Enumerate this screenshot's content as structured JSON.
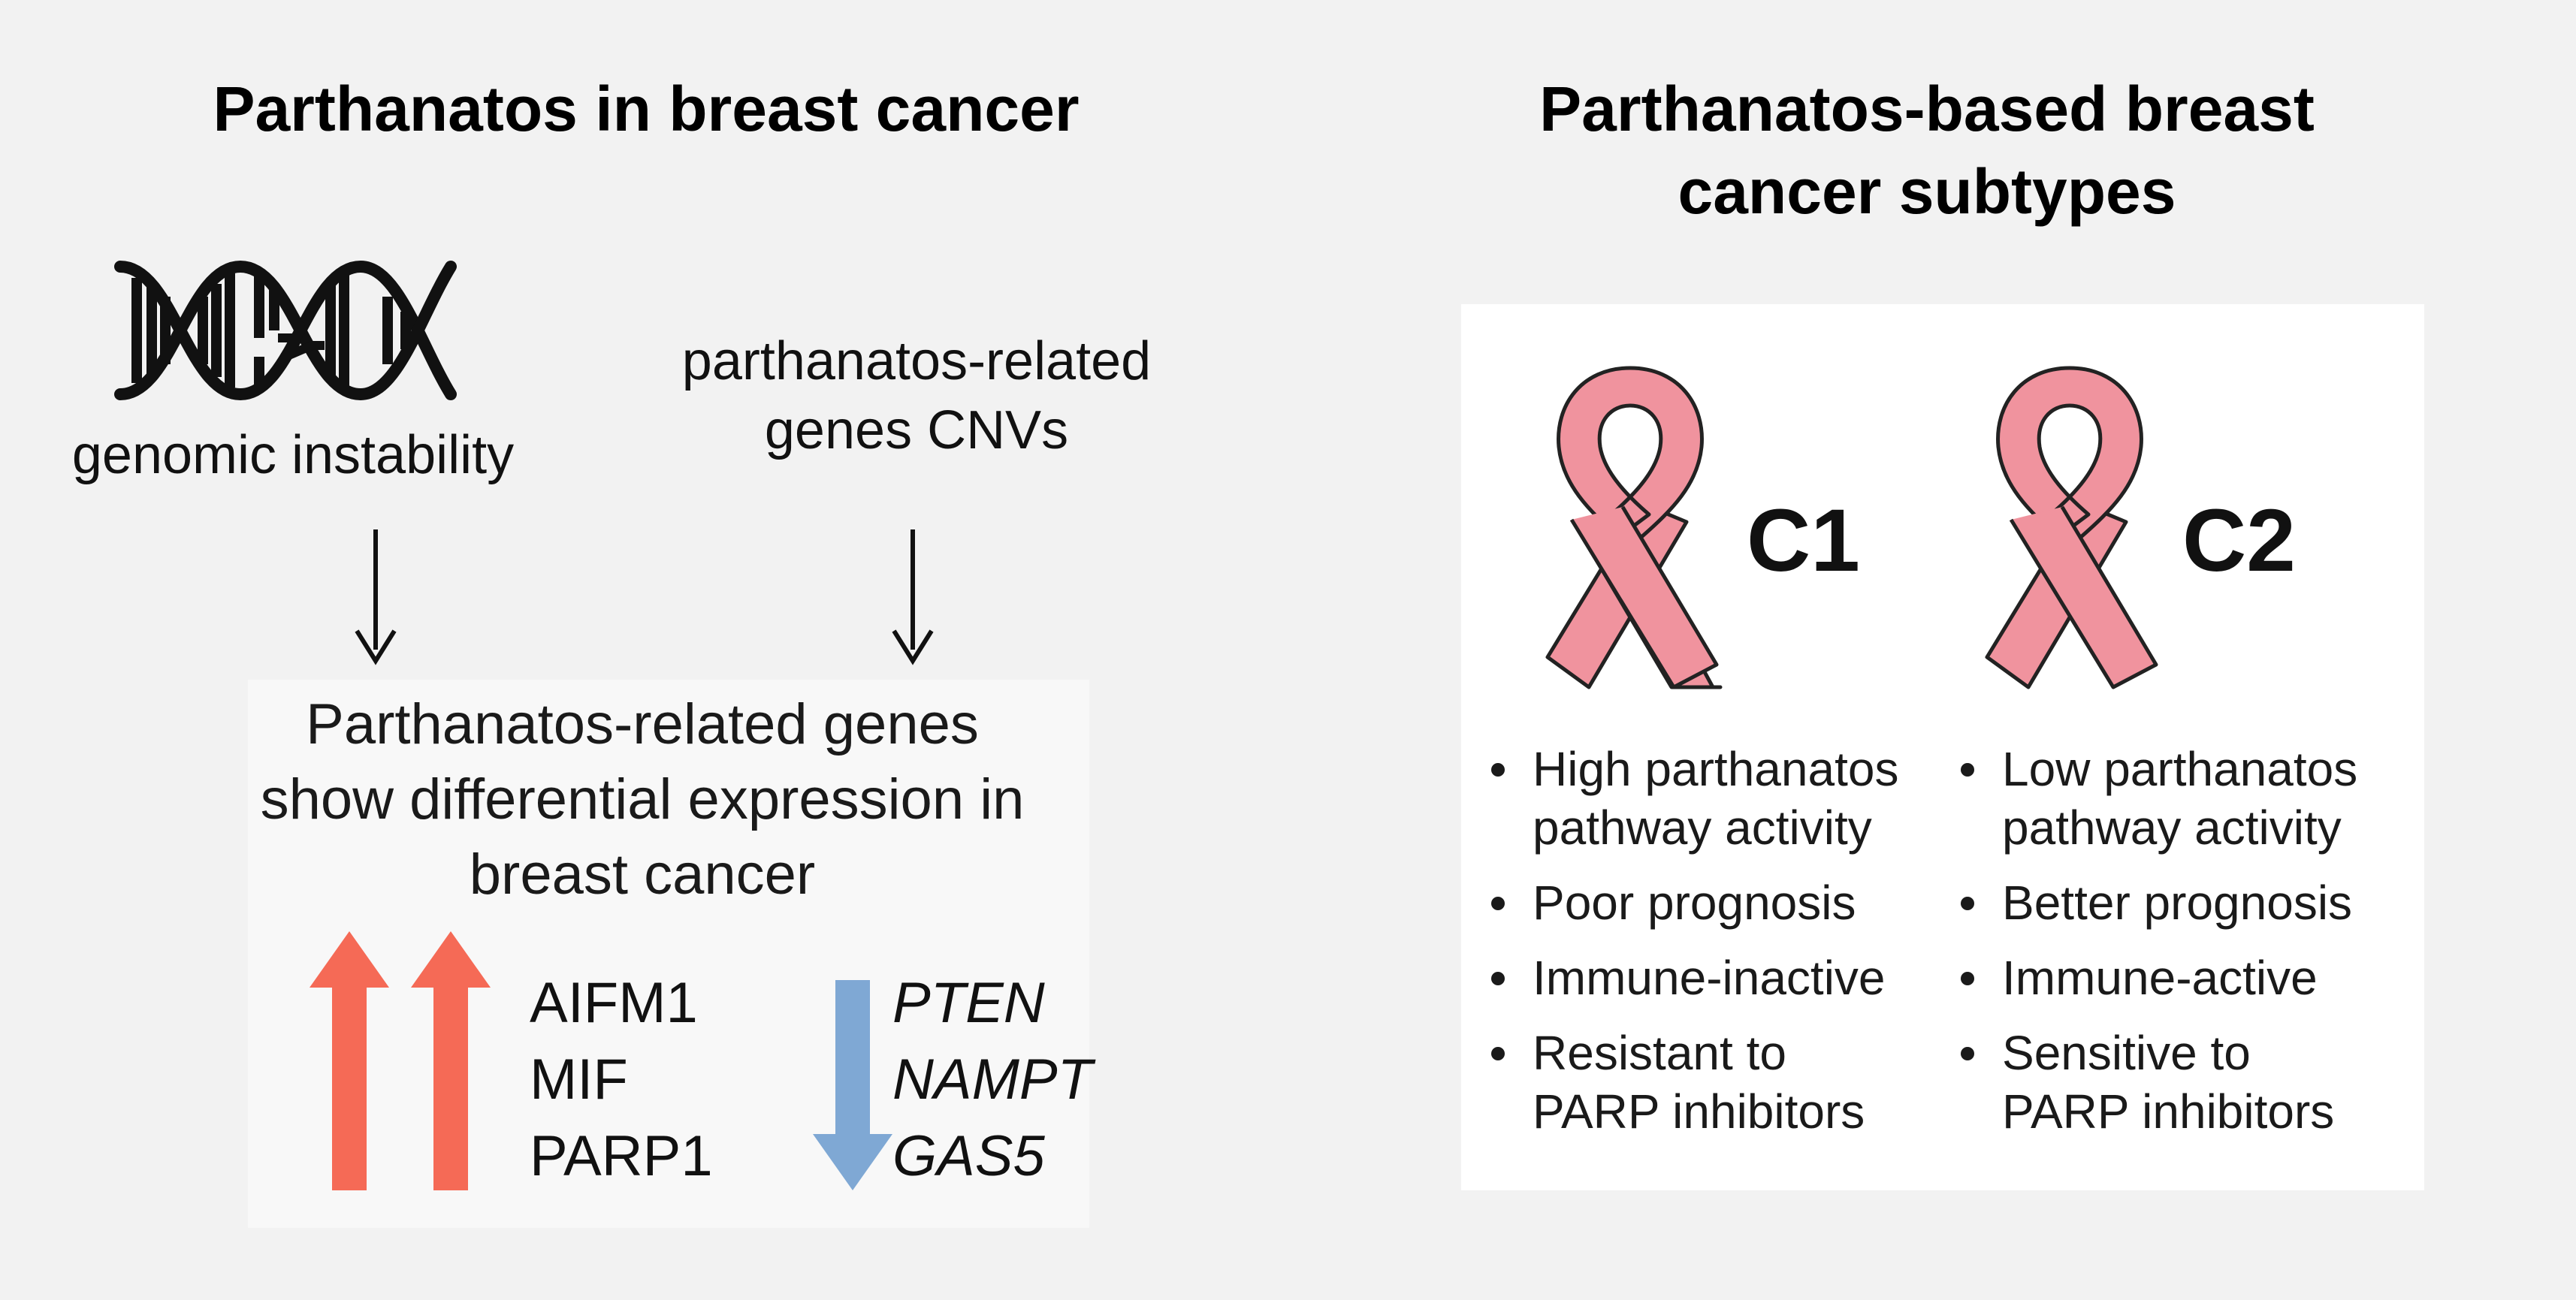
{
  "left_panel": {
    "title": "Parthanatos in breast cancer",
    "dna_icon": "dna-helix-icon",
    "genomic_instability": "genomic instability",
    "cnv_label": [
      "parthanatos-related",
      "genes CNVs"
    ],
    "center_text": [
      "Parthanatos-related genes",
      "show differential expression",
      "in breast cancer"
    ],
    "up_genes": [
      "AIFM1",
      "MIF",
      "PARP1"
    ],
    "down_genes": [
      "PTEN",
      "NAMPT",
      "GAS5"
    ],
    "colors": {
      "up_arrow": "#f56a56",
      "down_arrow": "#7fa8d4",
      "arrow_line": "#111111"
    }
  },
  "right_panel": {
    "title": [
      "Parthanatos-based breast",
      "cancer subtypes"
    ],
    "ribbon_icon": "pink-ribbon-icon",
    "ribbon_color": "#f0939e",
    "subtypes": [
      {
        "label": "C1",
        "bullets": [
          [
            "High parthanatos",
            "pathway activity"
          ],
          [
            "Poor prognosis"
          ],
          [
            "Immune-inactive"
          ],
          [
            "Resistant to",
            "PARP inhibitors"
          ]
        ]
      },
      {
        "label": "C2",
        "bullets": [
          [
            "Low parthanatos",
            "pathway activity"
          ],
          [
            "Better prognosis"
          ],
          [
            "Immune-active"
          ],
          [
            "Sensitive to",
            "PARP inhibitors"
          ]
        ]
      }
    ]
  }
}
